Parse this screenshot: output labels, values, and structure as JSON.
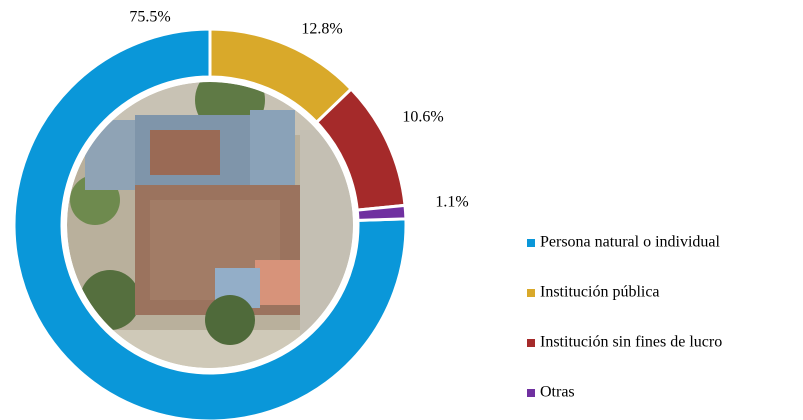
{
  "chart_data": {
    "type": "donut",
    "categories": [
      "Persona natural o individual",
      "Institución pública",
      "Institución sin fines de lucro",
      "Otras"
    ],
    "values": [
      75.5,
      12.8,
      10.6,
      1.1
    ],
    "value_labels": [
      "75.5%",
      "12.8%",
      "10.6%",
      "1.1%"
    ],
    "colors": [
      "#0a97d9",
      "#d9a92a",
      "#a52a2a",
      "#7030a0"
    ],
    "legend": "right"
  }
}
